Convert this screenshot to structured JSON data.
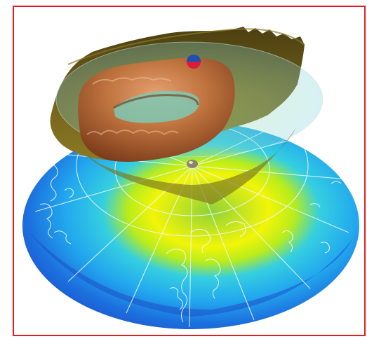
{
  "figure": {
    "frame_color": "#e02020",
    "colors": {
      "ocean_deep": "#1f5fd8",
      "ocean_mid": "#23a6ee",
      "auroral_band": "#c8ef18",
      "auroral_core": "#f4f600",
      "grid_lines": "#e8f6ff",
      "outer_surface": "#5b4e16",
      "inner_torus": "#b8663a",
      "polar_cap_dot_red": "#d81c3a",
      "polar_cap_dot_blue": "#1e4fb4"
    }
  }
}
